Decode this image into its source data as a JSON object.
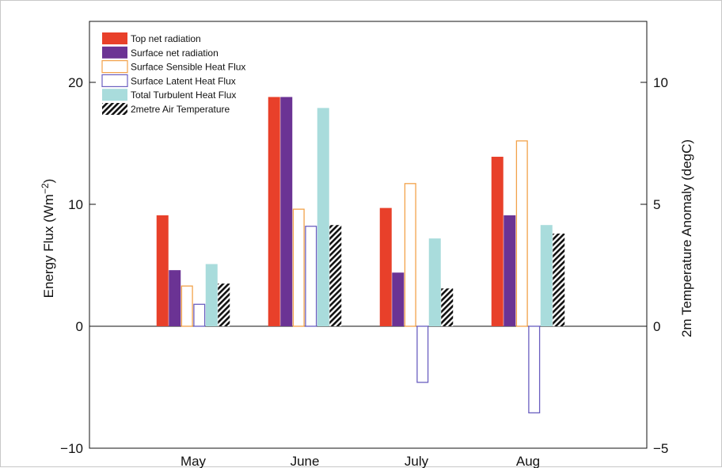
{
  "chart_data": {
    "type": "bar",
    "categories": [
      "May",
      "June",
      "July",
      "Aug"
    ],
    "ylabel": "Energy Flux (Wm⁻²)",
    "ylabel_base": "Energy Flux (Wm",
    "ylabel_sup": "−2",
    "ylabel_close": ")",
    "ylim": [
      -10,
      25
    ],
    "yticks": [
      -10,
      0,
      10,
      20
    ],
    "y2label": "2m Temperature Anomaly (degC)",
    "y2lim": [
      -5,
      12.5
    ],
    "y2ticks": [
      -5,
      0,
      5,
      10
    ],
    "legend_position": "top-left",
    "series": [
      {
        "name": "Top net radiation",
        "axis": "left",
        "style": "filled",
        "color": "#e8402a",
        "values": [
          9.1,
          18.8,
          9.7,
          13.9
        ]
      },
      {
        "name": "Surface net radiation",
        "axis": "left",
        "style": "filled",
        "color": "#6b3394",
        "values": [
          4.6,
          18.8,
          4.4,
          9.1
        ]
      },
      {
        "name": "Surface Sensible Heat Flux",
        "axis": "left",
        "style": "outline",
        "color": "#f2a24a",
        "values": [
          3.3,
          9.6,
          11.7,
          15.2
        ]
      },
      {
        "name": "Surface Latent Heat Flux",
        "axis": "left",
        "style": "outline",
        "color": "#6a5fc0",
        "values": [
          1.8,
          8.2,
          -4.6,
          -7.1
        ]
      },
      {
        "name": "Total Turbulent Heat Flux",
        "axis": "left",
        "style": "filled",
        "color": "#a9dcdc",
        "values": [
          5.1,
          17.9,
          7.2,
          8.3
        ]
      },
      {
        "name": "2metre Air Temperature",
        "axis": "right",
        "style": "hatched",
        "color": "#111111",
        "values": [
          1.75,
          4.15,
          1.55,
          3.8
        ]
      }
    ]
  }
}
